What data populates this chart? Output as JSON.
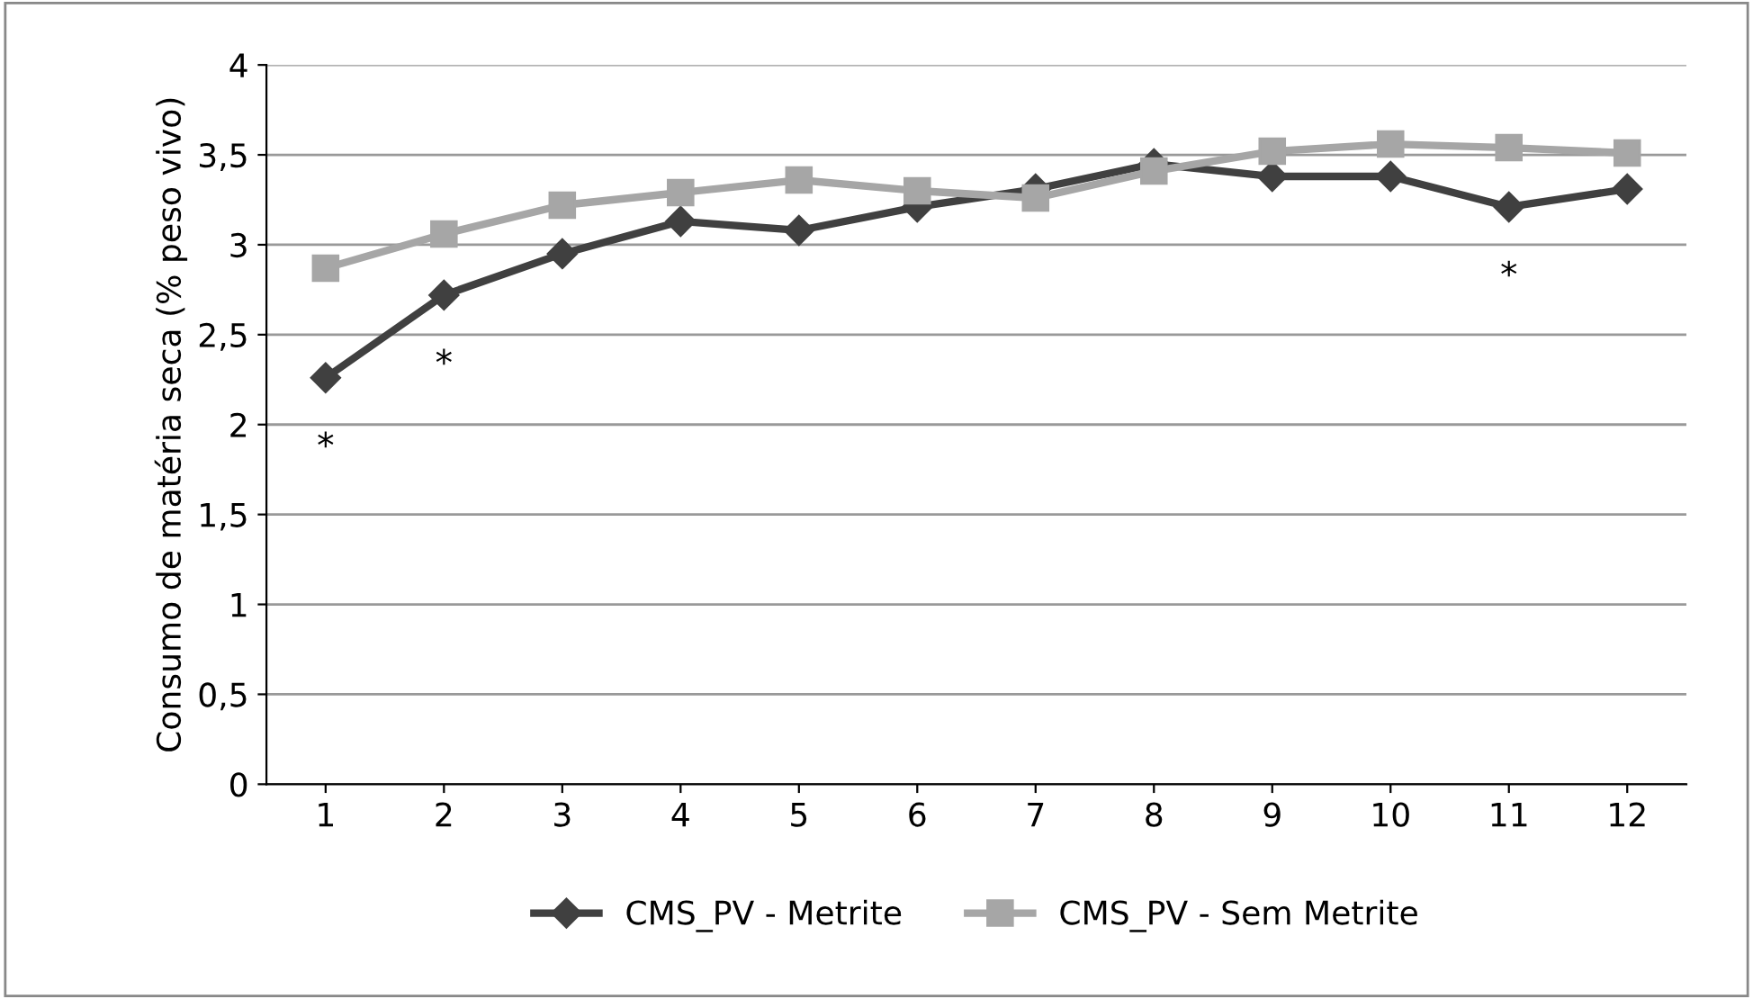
{
  "chart_data": {
    "type": "line",
    "ylabel": "Consumo de matéria seca (% peso vivo)",
    "categories": [
      "1",
      "2",
      "3",
      "4",
      "5",
      "6",
      "7",
      "8",
      "9",
      "10",
      "11",
      "12"
    ],
    "series": [
      {
        "name": "CMS_PV - Metrite",
        "color": "#404040",
        "marker": "diamond",
        "values": [
          2.26,
          2.72,
          2.95,
          3.13,
          3.08,
          3.21,
          3.31,
          3.45,
          3.38,
          3.38,
          3.21,
          3.31
        ]
      },
      {
        "name": "CMS_PV - Sem Metrite",
        "color": "#a6a6a6",
        "marker": "square",
        "values": [
          2.87,
          3.06,
          3.22,
          3.29,
          3.36,
          3.3,
          3.26,
          3.41,
          3.52,
          3.56,
          3.54,
          3.51
        ]
      }
    ],
    "annotations": [
      {
        "text": "*",
        "x": "1",
        "y": 2.26
      },
      {
        "text": "*",
        "x": "2",
        "y": 2.72
      },
      {
        "text": "*",
        "x": "11",
        "y": 3.21
      }
    ],
    "ylim": [
      0,
      4
    ],
    "yticks": [
      {
        "value": 0,
        "label": "0"
      },
      {
        "value": 0.5,
        "label": "0,5"
      },
      {
        "value": 1,
        "label": "1"
      },
      {
        "value": 1.5,
        "label": "1,5"
      },
      {
        "value": 2,
        "label": "2"
      },
      {
        "value": 2.5,
        "label": "2,5"
      },
      {
        "value": 3,
        "label": "3"
      },
      {
        "value": 3.5,
        "label": "3,5"
      },
      {
        "value": 4,
        "label": "4"
      }
    ],
    "grid": "y",
    "legend": "bottom",
    "line_style": "solid"
  }
}
